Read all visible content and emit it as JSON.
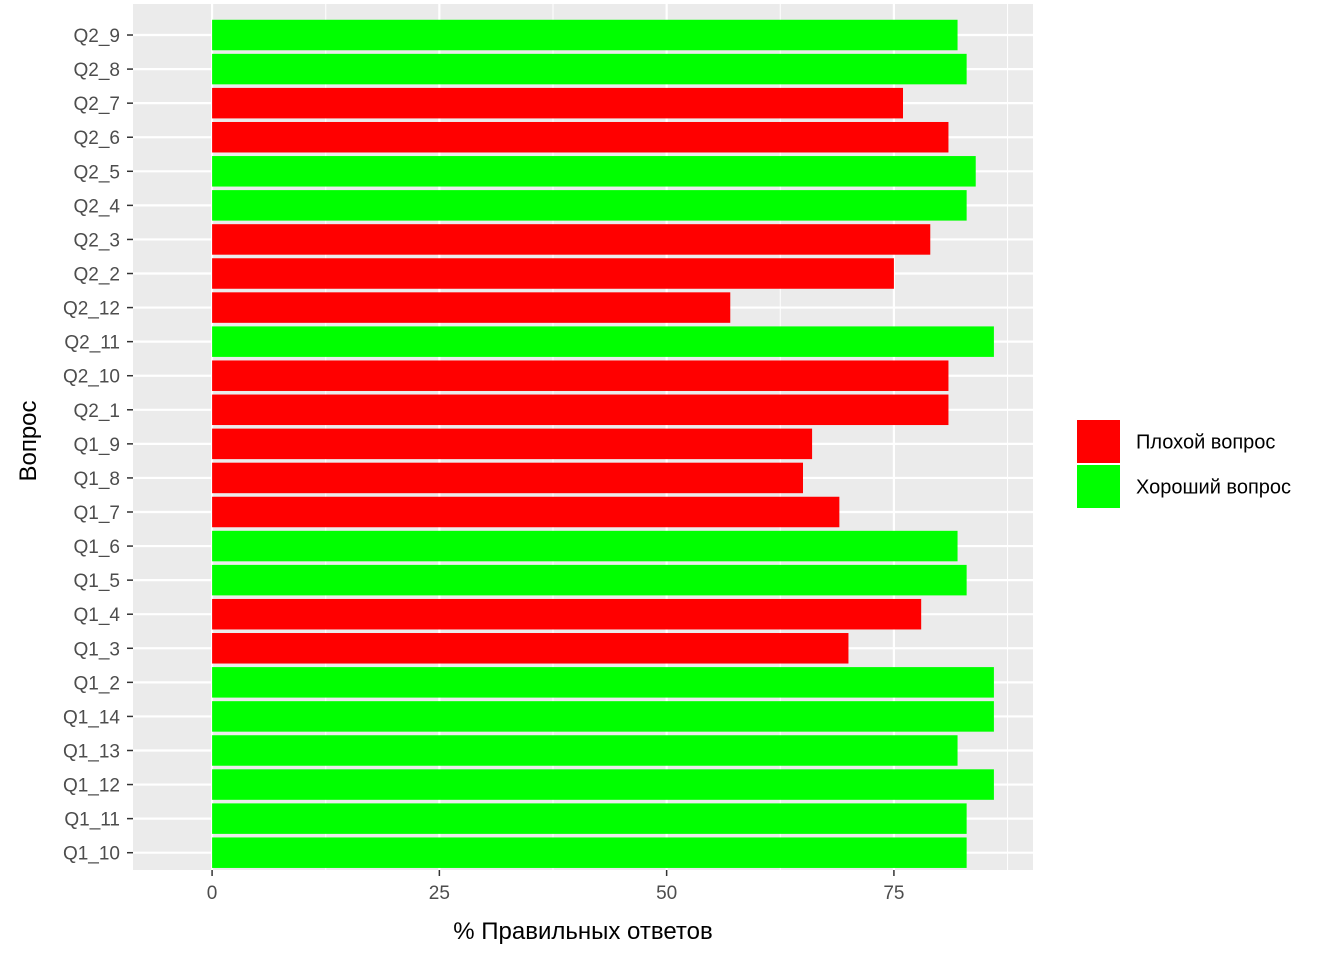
{
  "chart_data": {
    "type": "bar",
    "orientation": "horizontal",
    "title": "",
    "xlabel": "% Правильных ответов",
    "ylabel": "Вопрос",
    "xlim": [
      -8.7,
      90.3
    ],
    "x_ticks": [
      0,
      25,
      50,
      75
    ],
    "grid": true,
    "legend_position": "right",
    "colors": {
      "panel_background": "#ebebeb",
      "grid": "#ffffff",
      "tick_text": "#4d4d4d"
    },
    "legend": [
      {
        "label": "Плохой вопрос",
        "color": "#ff0000"
      },
      {
        "label": "Хороший вопрос",
        "color": "#00ff00"
      }
    ],
    "categories": [
      "Q1_10",
      "Q1_11",
      "Q1_12",
      "Q1_13",
      "Q1_14",
      "Q1_2",
      "Q1_3",
      "Q1_4",
      "Q1_5",
      "Q1_6",
      "Q1_7",
      "Q1_8",
      "Q1_9",
      "Q2_1",
      "Q2_10",
      "Q2_11",
      "Q2_12",
      "Q2_2",
      "Q2_3",
      "Q2_4",
      "Q2_5",
      "Q2_6",
      "Q2_7",
      "Q2_8",
      "Q2_9"
    ],
    "values": [
      83,
      83,
      86,
      82,
      86,
      86,
      70,
      78,
      83,
      82,
      69,
      65,
      66,
      81,
      81,
      86,
      57,
      75,
      79,
      83,
      84,
      81,
      76,
      83,
      82
    ],
    "groups": [
      "Хороший вопрос",
      "Хороший вопрос",
      "Хороший вопрос",
      "Хороший вопрос",
      "Хороший вопрос",
      "Хороший вопрос",
      "Плохой вопрос",
      "Плохой вопрос",
      "Хороший вопрос",
      "Хороший вопрос",
      "Плохой вопрос",
      "Плохой вопрос",
      "Плохой вопрос",
      "Плохой вопрос",
      "Плохой вопрос",
      "Хороший вопрос",
      "Плохой вопрос",
      "Плохой вопрос",
      "Плохой вопрос",
      "Хороший вопрос",
      "Хороший вопрос",
      "Плохой вопрос",
      "Плохой вопрос",
      "Хороший вопрос",
      "Хороший вопрос"
    ]
  }
}
